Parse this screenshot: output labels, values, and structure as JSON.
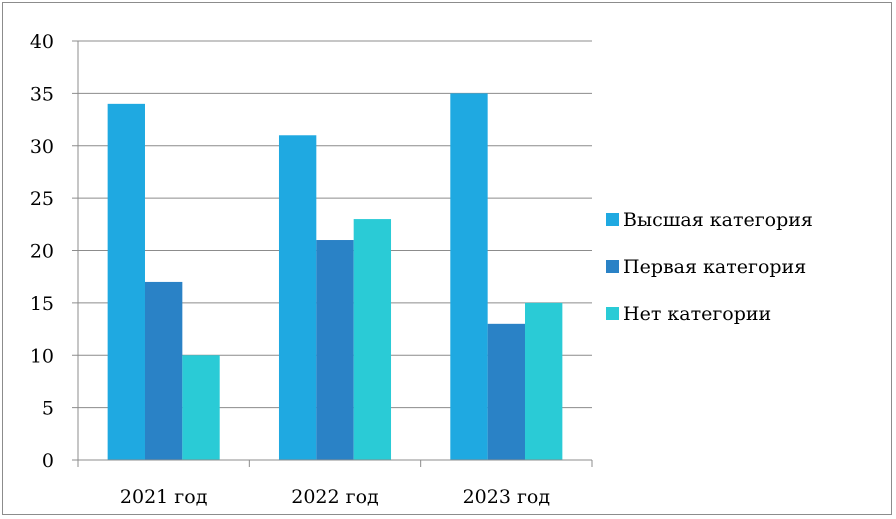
{
  "chart_data": {
    "type": "bar",
    "title": "",
    "xlabel": "",
    "ylabel": "",
    "categories": [
      "2021 год",
      "2022 год",
      "2023 год"
    ],
    "series": [
      {
        "name": "Высшая категория",
        "values": [
          34,
          31,
          35
        ],
        "color": "#1fa9e1"
      },
      {
        "name": "Первая категория",
        "values": [
          17,
          21,
          13
        ],
        "color": "#2a82c6"
      },
      {
        "name": "Нет категории",
        "values": [
          10,
          23,
          15
        ],
        "color": "#2acbd6"
      }
    ],
    "ylim": [
      0,
      40
    ],
    "yticks": [
      "0",
      "5",
      "10",
      "15",
      "20",
      "25",
      "30",
      "35",
      "40"
    ],
    "grid": true,
    "legend": "right"
  }
}
